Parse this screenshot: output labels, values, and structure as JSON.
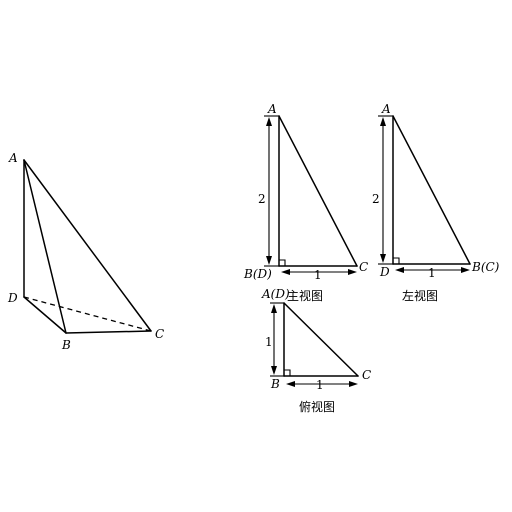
{
  "solid": {
    "labels": {
      "A": "A",
      "B": "B",
      "C": "C",
      "D": "D"
    }
  },
  "front_view": {
    "caption": "主视图",
    "top_label": "A",
    "bottom_left_label": "B(D)",
    "bottom_right_label": "C",
    "height_dim": "2",
    "base_dim": "1"
  },
  "side_view": {
    "caption": "左视图",
    "top_label": "A",
    "bottom_left_label": "D",
    "bottom_right_label": "B(C)",
    "height_dim": "2",
    "base_dim": "1"
  },
  "top_view": {
    "caption": "俯视图",
    "top_label": "A(D)",
    "bottom_left_label": "B",
    "bottom_right_label": "C",
    "height_dim": "1",
    "base_dim": "1"
  }
}
